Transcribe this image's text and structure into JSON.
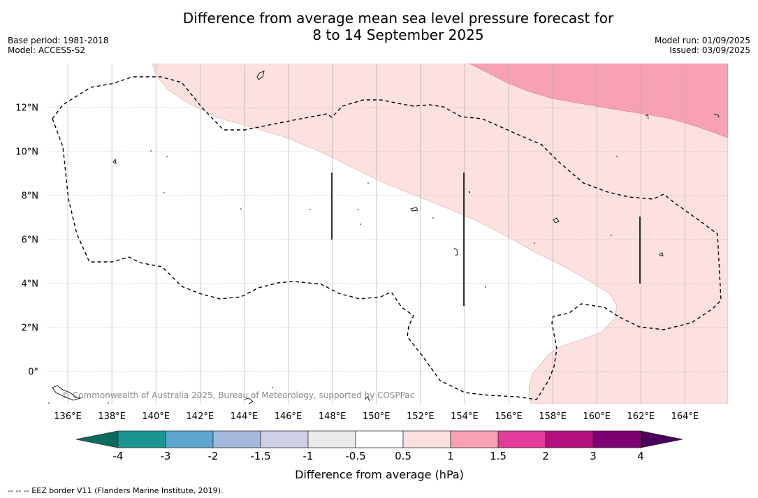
{
  "title": {
    "line1": "Difference from average mean sea level pressure forecast for",
    "line2": "8 to 14 September 2025"
  },
  "meta_left": {
    "base_period": "Base period: 1981-2018",
    "model": "Model: ACCESS-S2"
  },
  "meta_right": {
    "model_run": "Model run: 01/09/2025",
    "issued": "Issued: 03/09/2025"
  },
  "map": {
    "lon_ticks": [
      "136°E",
      "138°E",
      "140°E",
      "142°E",
      "144°E",
      "146°E",
      "148°E",
      "150°E",
      "152°E",
      "154°E",
      "156°E",
      "158°E",
      "160°E",
      "162°E",
      "164°E"
    ],
    "lat_ticks": [
      "12°N",
      "10°N",
      "8°N",
      "6°N",
      "4°N",
      "2°N",
      "0°"
    ],
    "copyright": "© Commonwealth of Australia 2025, Bureau of Meteorology, supported by COSPPac"
  },
  "colorbar": {
    "labels": [
      "-4",
      "-3",
      "-2",
      "-1.5",
      "-1",
      "-0.5",
      "0.5",
      "1",
      "1.5",
      "2",
      "3",
      "4"
    ],
    "colors": [
      "#1a9690",
      "#5ea6d0",
      "#a4b8dc",
      "#cdd0e6",
      "#ebebeb",
      "#ffffff",
      "#fde0e0",
      "#f8a0b4",
      "#e33c9a",
      "#b5117e",
      "#7d0072"
    ],
    "under_color": "#0b6b5e",
    "over_color": "#4a005a",
    "label": "Difference from average (hPa)"
  },
  "footer": "--  --  -- EEZ border V11 (Flanders Marine Institute, 2019)."
}
